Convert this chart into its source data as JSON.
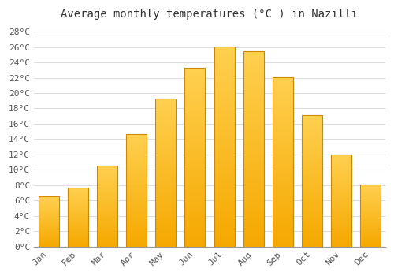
{
  "title": "Average monthly temperatures (°C ) in Nazilli",
  "months": [
    "Jan",
    "Feb",
    "Mar",
    "Apr",
    "May",
    "Jun",
    "Jul",
    "Aug",
    "Sep",
    "Oct",
    "Nov",
    "Dec"
  ],
  "values": [
    6.5,
    7.7,
    10.5,
    14.7,
    19.3,
    23.3,
    26.1,
    25.5,
    22.1,
    17.1,
    12.0,
    8.1
  ],
  "bar_color_bottom": "#F5A800",
  "bar_color_top": "#FFD050",
  "bar_edge_color": "#CC8800",
  "ylim": [
    0,
    29
  ],
  "yticks": [
    0,
    2,
    4,
    6,
    8,
    10,
    12,
    14,
    16,
    18,
    20,
    22,
    24,
    26,
    28
  ],
  "ytick_labels": [
    "0°C",
    "2°C",
    "4°C",
    "6°C",
    "8°C",
    "10°C",
    "12°C",
    "14°C",
    "16°C",
    "18°C",
    "20°C",
    "22°C",
    "24°C",
    "26°C",
    "28°C"
  ],
  "background_color": "#FFFFFF",
  "grid_color": "#DDDDDD",
  "title_fontsize": 10,
  "tick_fontsize": 8,
  "font_family": "monospace"
}
